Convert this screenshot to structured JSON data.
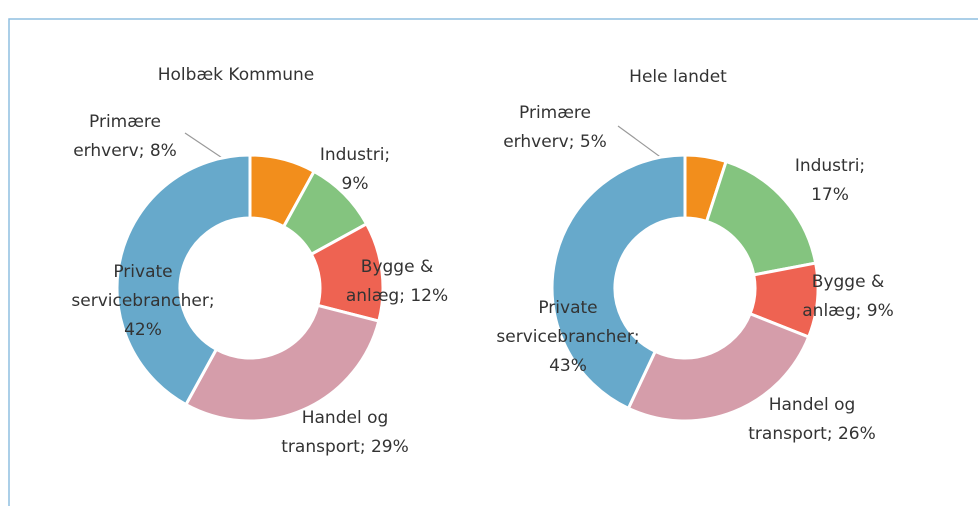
{
  "chart_data": [
    {
      "type": "pie",
      "donut": true,
      "title": "Holbæk Kommune",
      "values": [
        8,
        9,
        12,
        29,
        42
      ],
      "value_labels": [
        "Primære erhverv; 8%",
        "Industri; 9%",
        "Bygge & anlæg; 12%",
        "Handel og transport; 29%",
        "Private servicebrancher; 42%"
      ],
      "colors": [
        "#f28e1c",
        "#84c47f",
        "#ee6352",
        "#d59daa",
        "#67a9cb"
      ]
    },
    {
      "type": "pie",
      "donut": true,
      "title": "Hele landet",
      "values": [
        5,
        17,
        9,
        26,
        43
      ],
      "value_labels": [
        "Primære erhverv; 5%",
        "Industri; 17%",
        "Bygge & anlæg; 9%",
        "Handel og transport; 26%",
        "Private servicebrancher; 43%"
      ],
      "colors": [
        "#f28e1c",
        "#84c47f",
        "#ee6352",
        "#d59daa",
        "#67a9cb"
      ]
    }
  ]
}
